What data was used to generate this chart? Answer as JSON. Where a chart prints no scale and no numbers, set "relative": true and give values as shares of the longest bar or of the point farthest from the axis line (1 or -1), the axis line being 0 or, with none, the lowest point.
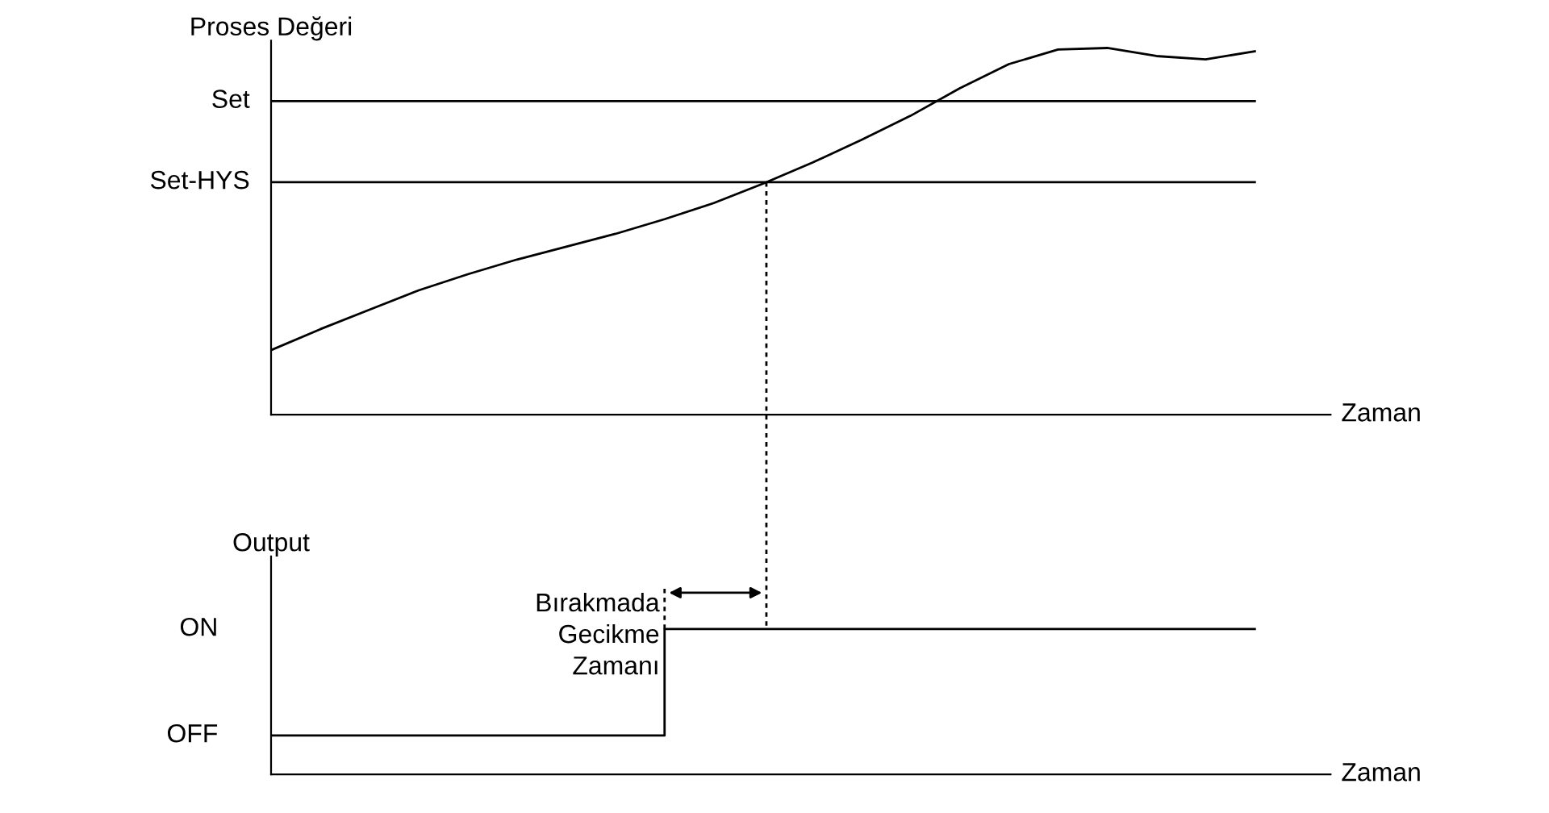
{
  "chart_data": [
    {
      "type": "line",
      "ylabel": "Proses Değeri",
      "xlabel": "Zaman",
      "relative": true,
      "categories": [
        null,
        null,
        null,
        null,
        null,
        null,
        null,
        null,
        null,
        null,
        null,
        null,
        null,
        null,
        null,
        null,
        null,
        null,
        null,
        null,
        null
      ],
      "series": [
        {
          "color": "#000000",
          "values": [
            0.176,
            0.233,
            0.286,
            0.339,
            0.383,
            0.423,
            0.458,
            0.493,
            0.533,
            0.577,
            0.63,
            0.687,
            0.749,
            0.815,
            0.89,
            0.956,
            0.996,
            1.0,
            0.978,
            0.969,
            0.991
          ]
        }
      ],
      "ref_lines": [
        {
          "axis": "y",
          "value": 0.855,
          "label": "Set",
          "color": "#000000",
          "line_style": "solid"
        },
        {
          "axis": "y",
          "value": 0.634,
          "label": "Set-HYS",
          "color": "#000000",
          "line_style": "solid"
        }
      ]
    },
    {
      "type": "step",
      "ylabel": "Output",
      "xlabel": "Zaman",
      "relative": true,
      "categories": [
        null,
        null,
        null,
        null,
        null,
        null,
        null,
        null,
        null,
        null,
        null,
        null,
        null,
        null,
        null,
        null,
        null,
        null,
        null,
        null,
        null
      ],
      "series": [
        {
          "color": "#000000",
          "values": [
            0.267,
            0.267,
            0.267,
            0.267,
            0.267,
            0.267,
            0.267,
            0.267,
            1,
            1,
            1,
            1,
            1,
            1,
            1,
            1,
            1,
            1,
            1,
            1,
            1
          ]
        }
      ],
      "annotations": [
        "ON",
        "OFF",
        "Bırakmada\nGecikme\nZamanı"
      ]
    }
  ]
}
